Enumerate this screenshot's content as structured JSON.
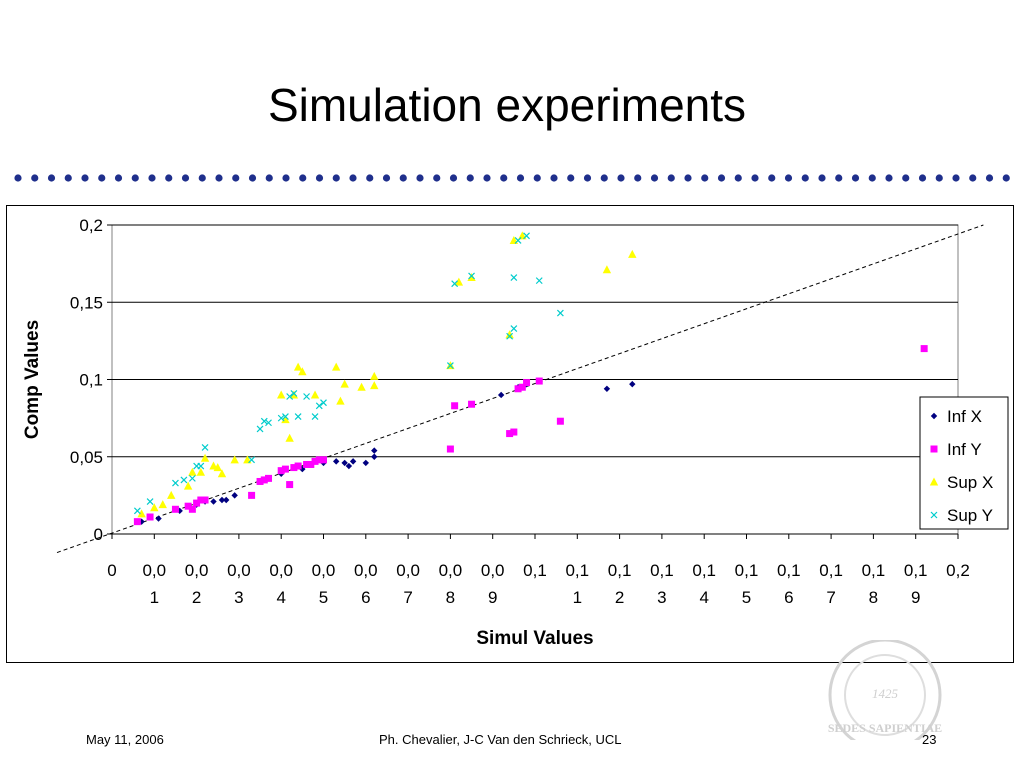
{
  "slide": {
    "title": "Simulation experiments",
    "footer_date": "May 11, 2006",
    "footer_authors": "Ph. Chevalier, J-C Van den Schrieck, UCL",
    "page_number": "23",
    "seal_text": "SEDES SAPIENTIAE",
    "seal_year": "1425",
    "accent_color": "#1f2f8c"
  },
  "chart_data": {
    "type": "scatter",
    "xlabel": "Simul Values",
    "ylabel": "Comp Values",
    "xlim": [
      0,
      0.2
    ],
    "ylim": [
      0,
      0.2
    ],
    "x_tick_labels": [
      [
        "0",
        ""
      ],
      [
        "0,0",
        "1"
      ],
      [
        "0,0",
        "2"
      ],
      [
        "0,0",
        "3"
      ],
      [
        "0,0",
        "4"
      ],
      [
        "0,0",
        "5"
      ],
      [
        "0,0",
        "6"
      ],
      [
        "0,0",
        "7"
      ],
      [
        "0,0",
        "8"
      ],
      [
        "0,0",
        "9"
      ],
      [
        "0,1",
        ""
      ],
      [
        "0,1",
        "1"
      ],
      [
        "0,1",
        "2"
      ],
      [
        "0,1",
        "3"
      ],
      [
        "0,1",
        "4"
      ],
      [
        "0,1",
        "5"
      ],
      [
        "0,1",
        "6"
      ],
      [
        "0,1",
        "7"
      ],
      [
        "0,1",
        "8"
      ],
      [
        "0,1",
        "9"
      ],
      [
        "0,2",
        ""
      ]
    ],
    "y_ticks": [
      0,
      0.05,
      0.1,
      0.15,
      0.2
    ],
    "y_tick_labels": [
      "0",
      "0,05",
      "0,1",
      "0,15",
      "0,2"
    ],
    "grid": "horizontal",
    "legend_position": "right",
    "reference_line": {
      "style": "dashed",
      "from": [
        -0.013,
        -0.012
      ],
      "to": [
        0.206,
        0.2
      ]
    },
    "series": [
      {
        "name": "Inf X",
        "marker": "diamond",
        "color": "#000080",
        "points": [
          [
            0.007,
            0.008
          ],
          [
            0.011,
            0.01
          ],
          [
            0.016,
            0.015
          ],
          [
            0.02,
            0.019
          ],
          [
            0.022,
            0.021
          ],
          [
            0.024,
            0.021
          ],
          [
            0.026,
            0.022
          ],
          [
            0.027,
            0.022
          ],
          [
            0.029,
            0.025
          ],
          [
            0.033,
            0.025
          ],
          [
            0.04,
            0.039
          ],
          [
            0.045,
            0.042
          ],
          [
            0.05,
            0.046
          ],
          [
            0.053,
            0.047
          ],
          [
            0.055,
            0.046
          ],
          [
            0.056,
            0.044
          ],
          [
            0.057,
            0.047
          ],
          [
            0.06,
            0.046
          ],
          [
            0.062,
            0.054
          ],
          [
            0.062,
            0.05
          ],
          [
            0.092,
            0.09
          ],
          [
            0.096,
            0.095
          ],
          [
            0.098,
            0.097
          ],
          [
            0.117,
            0.094
          ],
          [
            0.123,
            0.097
          ],
          [
            0.192,
            0.12
          ]
        ]
      },
      {
        "name": "Inf Y",
        "marker": "square",
        "color": "#ff00ff",
        "points": [
          [
            0.006,
            0.008
          ],
          [
            0.009,
            0.011
          ],
          [
            0.015,
            0.016
          ],
          [
            0.018,
            0.018
          ],
          [
            0.019,
            0.016
          ],
          [
            0.02,
            0.02
          ],
          [
            0.021,
            0.022
          ],
          [
            0.022,
            0.022
          ],
          [
            0.033,
            0.025
          ],
          [
            0.035,
            0.034
          ],
          [
            0.036,
            0.035
          ],
          [
            0.037,
            0.036
          ],
          [
            0.04,
            0.041
          ],
          [
            0.041,
            0.042
          ],
          [
            0.042,
            0.032
          ],
          [
            0.043,
            0.043
          ],
          [
            0.044,
            0.044
          ],
          [
            0.046,
            0.045
          ],
          [
            0.047,
            0.045
          ],
          [
            0.048,
            0.047
          ],
          [
            0.049,
            0.048
          ],
          [
            0.05,
            0.048
          ],
          [
            0.08,
            0.055
          ],
          [
            0.081,
            0.083
          ],
          [
            0.085,
            0.084
          ],
          [
            0.094,
            0.065
          ],
          [
            0.095,
            0.066
          ],
          [
            0.096,
            0.094
          ],
          [
            0.097,
            0.095
          ],
          [
            0.098,
            0.098
          ],
          [
            0.101,
            0.099
          ],
          [
            0.106,
            0.073
          ],
          [
            0.192,
            0.12
          ]
        ]
      },
      {
        "name": "Sup X",
        "marker": "triangle",
        "color": "#ffff00",
        "points": [
          [
            0.007,
            0.013
          ],
          [
            0.01,
            0.017
          ],
          [
            0.012,
            0.019
          ],
          [
            0.014,
            0.025
          ],
          [
            0.018,
            0.031
          ],
          [
            0.019,
            0.04
          ],
          [
            0.021,
            0.04
          ],
          [
            0.022,
            0.049
          ],
          [
            0.024,
            0.044
          ],
          [
            0.025,
            0.043
          ],
          [
            0.026,
            0.039
          ],
          [
            0.029,
            0.048
          ],
          [
            0.032,
            0.048
          ],
          [
            0.04,
            0.09
          ],
          [
            0.041,
            0.074
          ],
          [
            0.042,
            0.062
          ],
          [
            0.043,
            0.09
          ],
          [
            0.044,
            0.108
          ],
          [
            0.045,
            0.105
          ],
          [
            0.048,
            0.09
          ],
          [
            0.053,
            0.108
          ],
          [
            0.054,
            0.086
          ],
          [
            0.055,
            0.097
          ],
          [
            0.059,
            0.095
          ],
          [
            0.062,
            0.102
          ],
          [
            0.062,
            0.096
          ],
          [
            0.08,
            0.109
          ],
          [
            0.082,
            0.163
          ],
          [
            0.085,
            0.166
          ],
          [
            0.095,
            0.19
          ],
          [
            0.097,
            0.193
          ],
          [
            0.094,
            0.129
          ],
          [
            0.117,
            0.171
          ],
          [
            0.123,
            0.181
          ]
        ]
      },
      {
        "name": "Sup Y",
        "marker": "x",
        "color": "#00cccc",
        "points": [
          [
            0.006,
            0.015
          ],
          [
            0.009,
            0.021
          ],
          [
            0.015,
            0.033
          ],
          [
            0.017,
            0.035
          ],
          [
            0.019,
            0.036
          ],
          [
            0.02,
            0.044
          ],
          [
            0.021,
            0.044
          ],
          [
            0.022,
            0.056
          ],
          [
            0.033,
            0.048
          ],
          [
            0.035,
            0.068
          ],
          [
            0.036,
            0.073
          ],
          [
            0.037,
            0.072
          ],
          [
            0.04,
            0.075
          ],
          [
            0.041,
            0.076
          ],
          [
            0.042,
            0.089
          ],
          [
            0.043,
            0.091
          ],
          [
            0.044,
            0.076
          ],
          [
            0.046,
            0.089
          ],
          [
            0.048,
            0.076
          ],
          [
            0.049,
            0.083
          ],
          [
            0.05,
            0.085
          ],
          [
            0.08,
            0.109
          ],
          [
            0.081,
            0.162
          ],
          [
            0.085,
            0.167
          ],
          [
            0.094,
            0.128
          ],
          [
            0.095,
            0.166
          ],
          [
            0.095,
            0.133
          ],
          [
            0.096,
            0.19
          ],
          [
            0.098,
            0.193
          ],
          [
            0.101,
            0.164
          ],
          [
            0.106,
            0.143
          ]
        ]
      }
    ]
  }
}
